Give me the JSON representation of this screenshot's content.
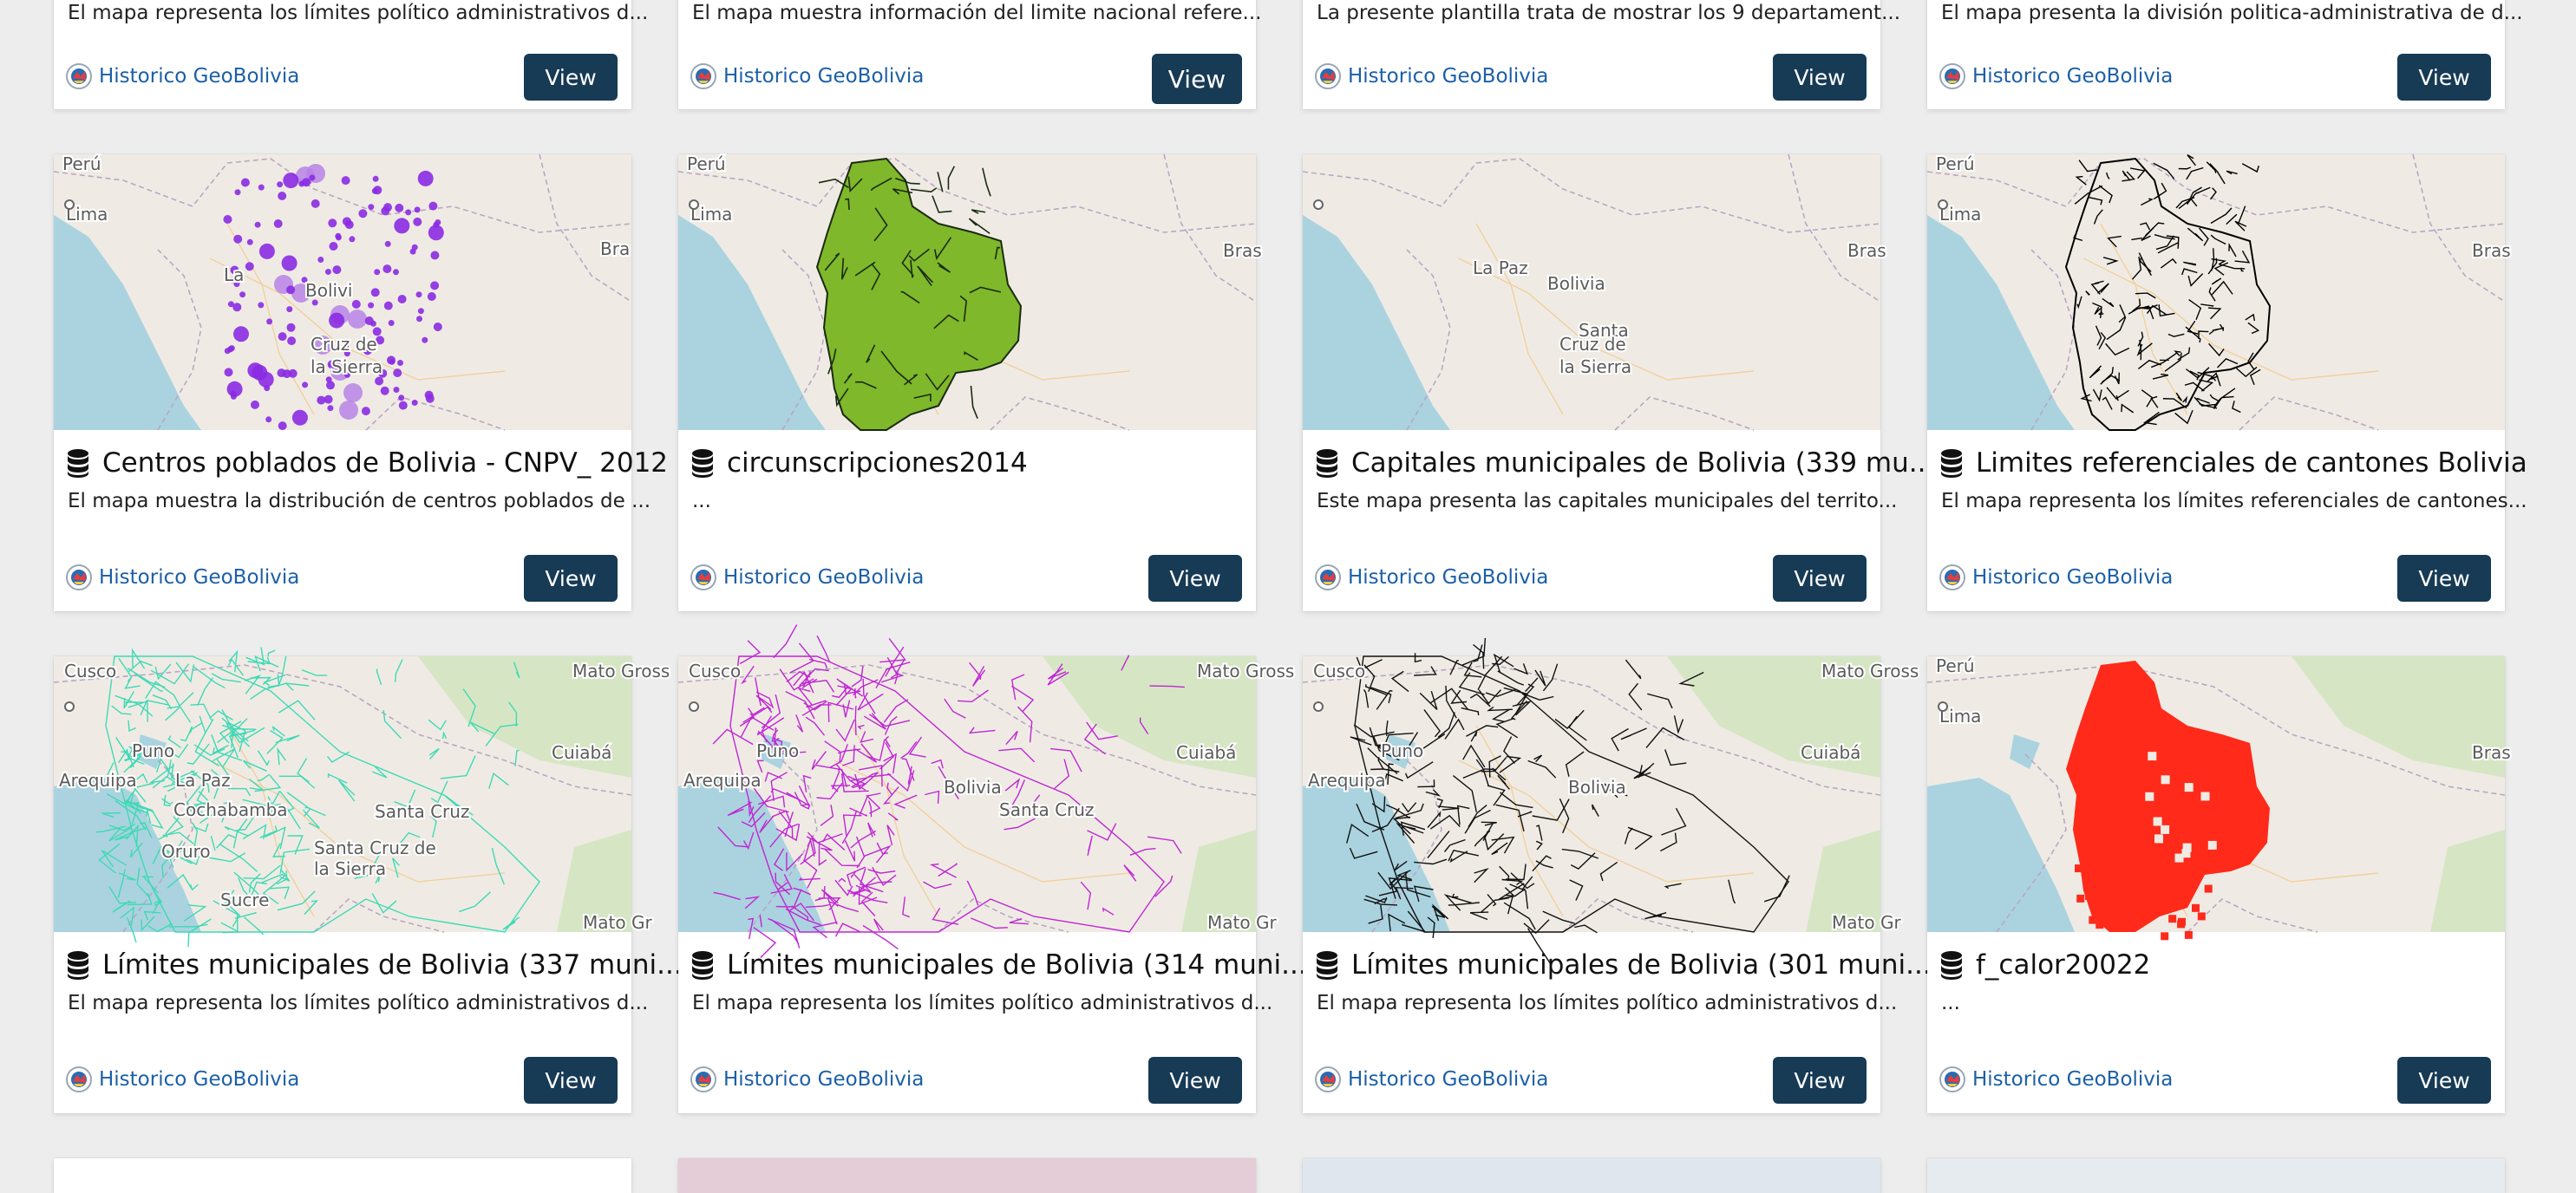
{
  "theme": {
    "button_color": "#173a55",
    "owner_link_color": "#1b5fa8",
    "page_bg": "#ededee"
  },
  "rows": [
    {
      "cards": [
        {
          "title": "",
          "description": "El mapa representa los límites político administrativos d...",
          "owner": "Historico GeoBolivia",
          "button": "View"
        },
        {
          "title": "",
          "description": "El mapa muestra información del limite nacional refere...",
          "owner": "Historico GeoBolivia",
          "button": "View"
        },
        {
          "title": "",
          "description": "La presente plantilla trata de mostrar los 9 departament...",
          "owner": "Historico GeoBolivia",
          "button": "View"
        },
        {
          "title": "",
          "description": "El mapa presenta la división politica-administrativa de d...",
          "owner": "Historico GeoBolivia",
          "button": "View"
        }
      ]
    },
    {
      "cards": [
        {
          "title": "Centros poblados de Bolivia - CNPV_ 2012",
          "description": "El mapa muestra la distribución de centros poblados de ...",
          "owner": "Historico GeoBolivia",
          "button": "View",
          "thumb_style": "points",
          "thumb_color": "#8a2be2",
          "map_labels": [
            "Perú",
            "Lima",
            "Bra",
            "La",
            "Bolivi",
            "Cruz de",
            "la Sierra"
          ]
        },
        {
          "title": "circunscripciones2014",
          "description": "...",
          "owner": "Historico GeoBolivia",
          "button": "View",
          "thumb_style": "fill",
          "thumb_color": "#7fb82a",
          "map_labels": [
            "Perú",
            "Lima",
            "Bras"
          ]
        },
        {
          "title": "Capitales municipales de Bolivia (339 mu...",
          "description": "Este mapa presenta las capitales municipales del territo...",
          "owner": "Historico GeoBolivia",
          "button": "View",
          "thumb_style": "base",
          "thumb_color": "#999999",
          "map_labels": [
            "La Paz",
            "Bolivia",
            "Santa",
            "Cruz de",
            "la Sierra",
            "Bras"
          ]
        },
        {
          "title": "Limites referenciales de cantones Bolivia",
          "description": "El mapa representa los límites referenciales de cantones...",
          "owner": "Historico GeoBolivia",
          "button": "View",
          "thumb_style": "outline",
          "thumb_color": "#000000",
          "map_labels": [
            "Perú",
            "Lima",
            "Bras"
          ]
        }
      ]
    },
    {
      "cards": [
        {
          "title": "Límites municipales de Bolivia (337 muni...",
          "description": "El mapa representa los límites político administrativos d...",
          "owner": "Historico GeoBolivia",
          "button": "View",
          "thumb_style": "lines",
          "thumb_color": "#3fd9b5",
          "map_labels": [
            "Cusco",
            "Mato Gross",
            "Puno",
            "La Paz",
            "Arequipa",
            "Cochabamba",
            "Santa Cruz",
            "Oruro",
            "Santa Cruz de",
            "la Sierra",
            "Sucre",
            "Cuiabá",
            "Mato Gr"
          ]
        },
        {
          "title": "Límites municipales de Bolivia (314 muni...",
          "description": "El mapa representa los límites político administrativos d...",
          "owner": "Historico GeoBolivia",
          "button": "View",
          "thumb_style": "lines",
          "thumb_color": "#c026d3",
          "map_labels": [
            "Cusco",
            "Mato Gross",
            "Puno",
            "Arequipa",
            "Bolivia",
            "Santa Cruz",
            "Cuiabá",
            "Mato Gr"
          ]
        },
        {
          "title": "Límites municipales de Bolivia (301 muni...",
          "description": "El mapa representa los límites político administrativos d...",
          "owner": "Historico GeoBolivia",
          "button": "View",
          "thumb_style": "lines",
          "thumb_color": "#111111",
          "map_labels": [
            "Cusco",
            "Mato Gross",
            "Puno",
            "Arequipa",
            "Bolivia",
            "Cuiabá",
            "Mato Gr"
          ]
        },
        {
          "title": "f_calor20022",
          "description": "...",
          "owner": "Historico GeoBolivia",
          "button": "View",
          "thumb_style": "blocks",
          "thumb_color": "#ff2a1a",
          "map_labels": [
            "Perú",
            "Lima",
            "Bras"
          ]
        }
      ]
    },
    {
      "cards": [
        {
          "title": "",
          "description": "",
          "owner": "",
          "button": ""
        },
        {
          "title": "",
          "description": "",
          "owner": "",
          "button": ""
        },
        {
          "title": "",
          "description": "",
          "owner": "",
          "button": ""
        },
        {
          "title": "",
          "description": "",
          "owner": "",
          "button": ""
        }
      ]
    }
  ]
}
